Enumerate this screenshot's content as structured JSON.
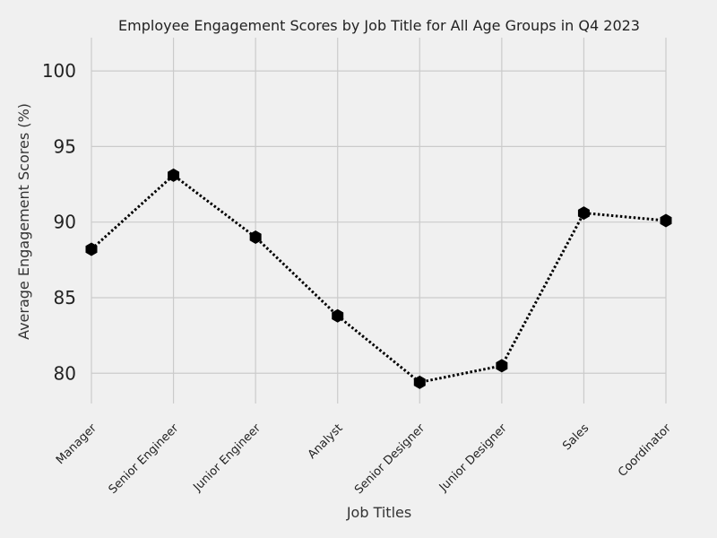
{
  "chart_data": {
    "type": "line",
    "title": "Employee Engagement Scores by Job Title for All Age Groups in Q4 2023",
    "xlabel": "Job Titles",
    "ylabel": "Average Engagement Scores (%)",
    "categories": [
      "Manager",
      "Senior Engineer",
      "Junior Engineer",
      "Analyst",
      "Senior Designer",
      "Junior Designer",
      "Sales",
      "Coordinator"
    ],
    "series": [
      {
        "values": [
          88.2,
          93.1,
          89.0,
          83.8,
          79.4,
          80.5,
          90.6,
          90.1
        ]
      }
    ],
    "ylim": [
      78,
      102.2
    ],
    "yticks": [
      80,
      85,
      90,
      95,
      100
    ],
    "grid": true,
    "line_style": "dotted",
    "marker": "hexagon",
    "colors": {
      "line": "#000000",
      "marker": "#000000",
      "grid": "#cbcbcb",
      "background": "#f0f0f0"
    }
  }
}
